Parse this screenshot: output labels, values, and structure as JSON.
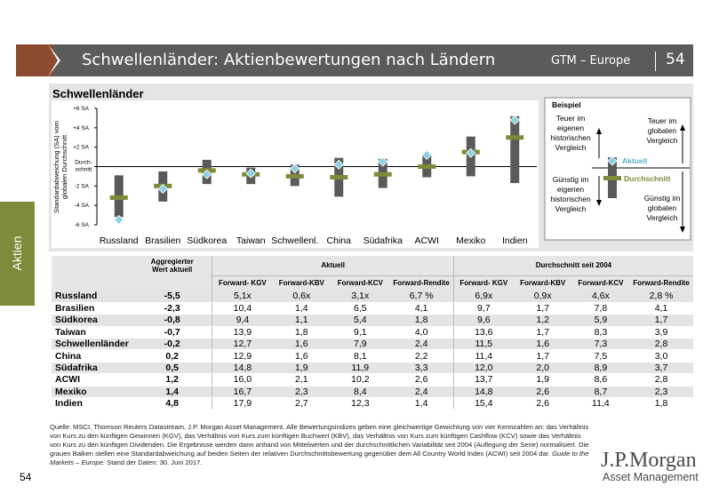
{
  "header": {
    "title": "Schwellenländer: Aktienbewertungen nach Ländern",
    "series": "GTM – Europe",
    "page": "54"
  },
  "side_tab": "Aktien",
  "chart_data": {
    "type": "range-dot",
    "title": "Schwellenländer",
    "ylabel": "Standardabweichung (SA) vom globalen Durchschnitt",
    "ylim": [
      -6,
      6
    ],
    "yticks": [
      "+6 SA",
      "+4 SA",
      "+2 SA",
      "Durch-schnitt",
      "-2 SA",
      "-4 SA",
      "-6 SA"
    ],
    "categories": [
      "Russland",
      "Brasilien",
      "Südkorea",
      "Taiwan",
      "Schwellenl.",
      "China",
      "Südafrika",
      "ACWI",
      "Mexiko",
      "Indien"
    ],
    "ranges": [
      [
        -5.2,
        -0.9
      ],
      [
        -3.6,
        -0.5
      ],
      [
        -1.8,
        0.7
      ],
      [
        -1.8,
        -0.1
      ],
      [
        -2.0,
        0.2
      ],
      [
        -3.1,
        0.9
      ],
      [
        -2.2,
        0.8
      ],
      [
        -1.1,
        1.2
      ],
      [
        -1.0,
        3.1
      ],
      [
        -1.7,
        5.2
      ]
    ],
    "aktuell": [
      -5.5,
      -2.3,
      -0.8,
      -0.7,
      -0.2,
      0.2,
      0.5,
      1.2,
      1.4,
      4.8
    ],
    "durchschnitt": [
      -3.2,
      -2.0,
      -0.4,
      -0.8,
      -1.0,
      -1.1,
      -0.8,
      0.0,
      1.5,
      3.0
    ],
    "legend": {
      "title": "Beispiel",
      "teuer_eigen": "Teuer im eigenen historischen Vergleich",
      "guenstig_eigen": "Günstig im eigenen historischen Vergleich",
      "teuer_global": "Teuer im globalen Vergleich",
      "guenstig_global": "Günstig im globalen Vergleich",
      "aktuell": "Aktuell",
      "durchschnitt": "Durchschnitt"
    },
    "colors": {
      "bar": "#5a5a5a",
      "diamond": "#8fd0e3",
      "avg": "#7f8a3a"
    }
  },
  "table": {
    "col_agg": "Aggregierter Wert aktuell",
    "group_aktuell": "Aktuell",
    "group_avg": "Durchschnitt seit 2004",
    "subheaders": [
      "Forward- KGV",
      "Forward-KBV",
      "Forward-KCV",
      "Forward-Rendite",
      "Forward- KGV",
      "Forward-KBV",
      "Forward-KCV",
      "Forward-Rendite"
    ],
    "rows": [
      [
        "Russland",
        "-5,5",
        "5,1x",
        "0,6x",
        "3,1x",
        "6,7 %",
        "6,9x",
        "0,9x",
        "4,6x",
        "2,8 %"
      ],
      [
        "Brasilien",
        "-2,3",
        "10,4",
        "1,4",
        "6,5",
        "4,1",
        "9,7",
        "1,7",
        "7,8",
        "4,1"
      ],
      [
        "Südkorea",
        "-0,8",
        "9,4",
        "1,1",
        "5,4",
        "1,8",
        "9,6",
        "1,2",
        "5,9",
        "1,7"
      ],
      [
        "Taiwan",
        "-0,7",
        "13,9",
        "1,8",
        "9,1",
        "4,0",
        "13,6",
        "1,7",
        "8,3",
        "3,9"
      ],
      [
        "Schwellenländer",
        "-0,2",
        "12,7",
        "1,6",
        "7,9",
        "2,4",
        "11,5",
        "1,6",
        "7,3",
        "2,8"
      ],
      [
        "China",
        "0,2",
        "12,9",
        "1,6",
        "8,1",
        "2,2",
        "11,4",
        "1,7",
        "7,5",
        "3,0"
      ],
      [
        "Südafrika",
        "0,5",
        "14,8",
        "1,9",
        "11,9",
        "3,3",
        "12,0",
        "2,0",
        "8,9",
        "3,7"
      ],
      [
        "ACWI",
        "1,2",
        "16,0",
        "2,1",
        "10,2",
        "2,6",
        "13,7",
        "1,9",
        "8,6",
        "2,8"
      ],
      [
        "Mexiko",
        "1,4",
        "16,7",
        "2,3",
        "8,4",
        "2,4",
        "14,8",
        "2,6",
        "8,7",
        "2,3"
      ],
      [
        "Indien",
        "4,8",
        "17,9",
        "2,7",
        "12,3",
        "1,4",
        "15,4",
        "2,6",
        "11,4",
        "1,8"
      ]
    ]
  },
  "source_prefix": "Quelle: MSCI, Thomson Reuters Datastream, J.P. Morgan Asset Management. Alle Bewertungsindizes geben eine gleichwertige Gewichtung von vier Kennzahlen an: das Verhältnis von Kurs zu den künftigen Gewinnen (KGV), das Verhältnis von Kurs zum künftigen Buchwert (KBV), das Verhältnis von Kurs zum künftigen Cashflow (KCV) sowie das Verhältnis von Kurs zu den künftigen Dividenden. Die Ergebnisse werden dann anhand von Mittelwerten und der durchschnittlichen Variabilität seit 2004 (Auflegung der Serie) normalisiert. Die grauen Balken stellen eine Standardabweichung auf beiden Seiten der relativen Durchschnittsbewertung gegenüber dem All Country World Index (ACWI) seit 2004 dar.",
  "source_guide": "Guide to the Markets – Europe.",
  "source_suffix": "Stand der Daten: 30. Juni 2017.",
  "logo": {
    "line1": "J.P.Morgan",
    "line2": "Asset Management"
  },
  "page_bottom": "54"
}
